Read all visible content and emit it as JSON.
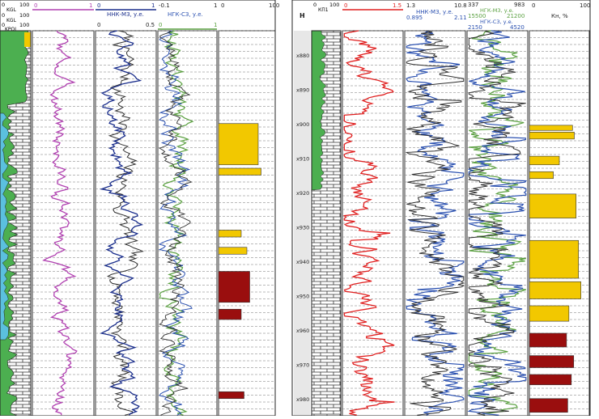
{
  "colors": {
    "magenta": "#b040b0",
    "navy": "#1a2e8c",
    "blue": "#2a50b0",
    "green": "#5aa040",
    "red": "#e02020",
    "dark": "#303030",
    "yellow": "#f2c800",
    "maroon": "#9a0e0e",
    "lith_green": "#4caf50",
    "lith_cyan": "#5bc0de",
    "grid": "#555555"
  },
  "left": {
    "t0": {
      "r1_min": "0",
      "r1_max": "100",
      "r1_name": "KGL",
      "r2_min": "0",
      "r2_max": "100",
      "r2_name": "KGL",
      "r3_min": "0",
      "r3_max": "100",
      "r3_name": "KPOL"
    },
    "t2": {
      "min": "0",
      "max": "1"
    },
    "t3": {
      "min": "0",
      "max": "1",
      "name": "ННК-МЗ, у.е.",
      "min2": "0",
      "max2": "0.5"
    },
    "t4": {
      "min": "-0.1",
      "max": "1",
      "name": "НГК-СЗ, у.е.",
      "min2": "0",
      "max2": "1"
    },
    "t5": {
      "min": "0",
      "max": "100"
    }
  },
  "right": {
    "depth": {
      "header": "Н",
      "labels": [
        "x880",
        "x890",
        "x900",
        "x910",
        "x920",
        "x930",
        "x940",
        "x950",
        "x960",
        "x970",
        "x980"
      ]
    },
    "t1": {
      "min": "0",
      "max": "100",
      "name": "КП1"
    },
    "t2": {
      "min": "0",
      "max": "1.5"
    },
    "t3": {
      "min": "1.3",
      "max": "10.8",
      "name": "ННК-МЗ, у.е.",
      "min2": "0.895",
      "max2": "2.11"
    },
    "t4": {
      "min": "337",
      "max": "983",
      "name": "НГК-МЗ, у.е.",
      "min2": "15500",
      "max2": "21200",
      "name2": "НГК-СЗ, у.е.",
      "min3": "2150",
      "max3": "4520"
    },
    "t5": {
      "min": "0",
      "max": "100",
      "name": "Кн, %"
    }
  },
  "chart_data": {
    "type": "line",
    "title": "",
    "depth_min": 873,
    "depth_max": 985,
    "depth_ticks": [
      880,
      890,
      900,
      910,
      920,
      930,
      940,
      950,
      960,
      970,
      980
    ],
    "series": [
      {
        "name": "ННК-МЗ, у.е.",
        "track": "right-3",
        "kind": "curve",
        "seed": 11
      },
      {
        "name": "НГК-МЗ, у.е.",
        "track": "right-4",
        "kind": "curve",
        "seed": 21
      },
      {
        "name": "НГК-СЗ, у.е.",
        "track": "right-4",
        "kind": "curve",
        "seed": 22
      },
      {
        "name": "Кн, %",
        "track": "right-5",
        "kind": "fill",
        "values": [
          {
            "top": 900.5,
            "bottom": 902.0,
            "value": 72
          },
          {
            "top": 902.5,
            "bottom": 904.5,
            "value": 75
          },
          {
            "top": 909.5,
            "bottom": 912.0,
            "value": 50
          },
          {
            "top": 914.0,
            "bottom": 916.0,
            "value": 40
          },
          {
            "top": 920.5,
            "bottom": 927.5,
            "value": 78
          },
          {
            "top": 934.0,
            "bottom": 945.0,
            "value": 82
          },
          {
            "top": 946.0,
            "bottom": 951.0,
            "value": 86
          },
          {
            "top": 953.0,
            "bottom": 957.5,
            "value": 66
          },
          {
            "top": 961.0,
            "bottom": 965.0,
            "value": 62
          },
          {
            "top": 967.5,
            "bottom": 971.0,
            "value": 74
          },
          {
            "top": 973.0,
            "bottom": 976.0,
            "value": 70
          },
          {
            "top": 980.0,
            "bottom": 984.0,
            "value": 64
          }
        ]
      }
    ]
  }
}
